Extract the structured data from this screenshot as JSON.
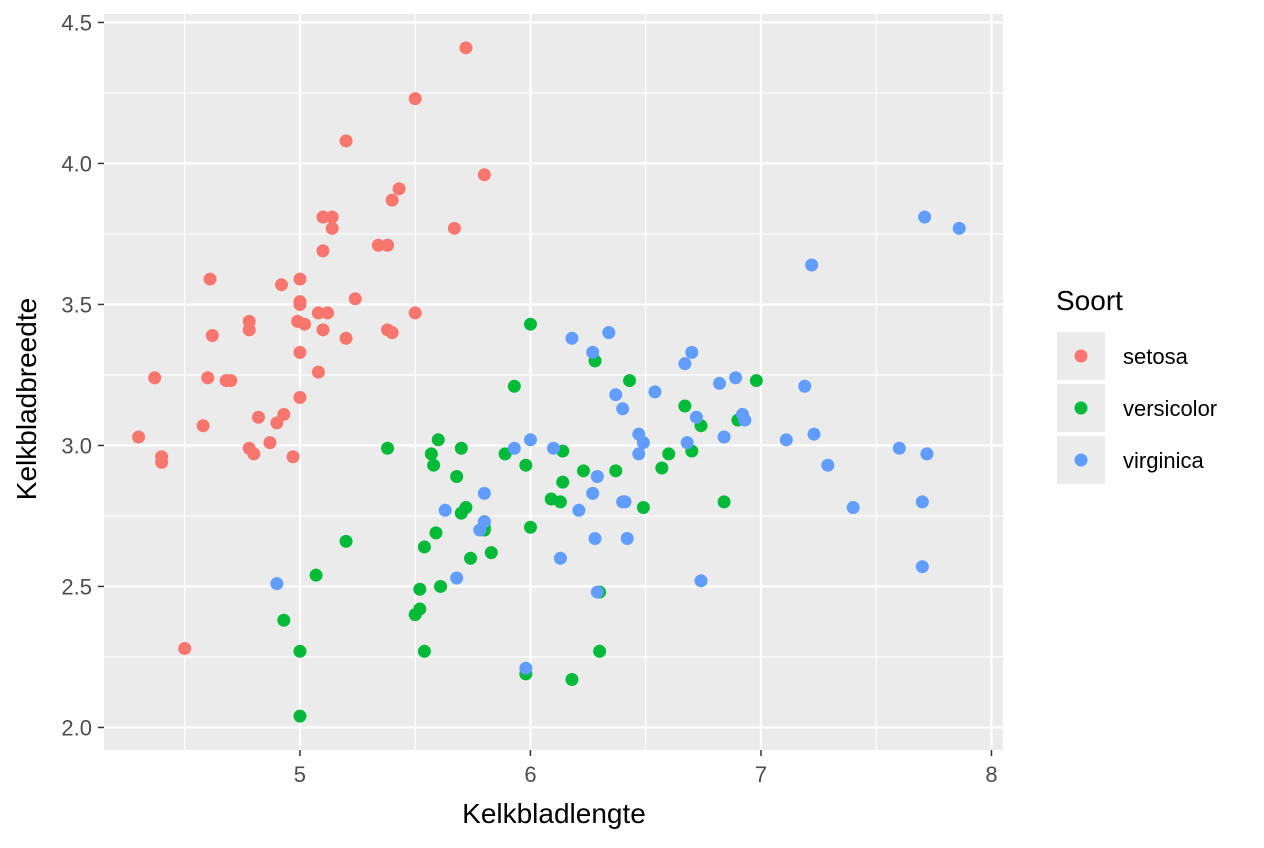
{
  "chart_data": {
    "type": "scatter",
    "xlabel": "Kelkbladlengte",
    "ylabel": "Kelkbladbreedte",
    "xlim": [
      4.15,
      8.05
    ],
    "ylim": [
      1.92,
      4.53
    ],
    "x_ticks": [
      "5",
      "6",
      "7",
      "8"
    ],
    "x_tick_values": [
      5,
      6,
      7,
      8
    ],
    "y_ticks": [
      "2.0",
      "2.5",
      "3.0",
      "3.5",
      "4.0",
      "4.5"
    ],
    "y_tick_values": [
      2.0,
      2.5,
      3.0,
      3.5,
      4.0,
      4.5
    ],
    "grid": true,
    "legend_title": "Soort",
    "legend_position": "right",
    "series": [
      {
        "name": "setosa",
        "color": "#F8766D",
        "points": [
          [
            4.3,
            3.03
          ],
          [
            4.37,
            3.24
          ],
          [
            4.4,
            2.96
          ],
          [
            4.4,
            2.94
          ],
          [
            4.5,
            2.28
          ],
          [
            4.58,
            3.07
          ],
          [
            4.6,
            3.24
          ],
          [
            4.61,
            3.59
          ],
          [
            4.62,
            3.39
          ],
          [
            4.68,
            3.23
          ],
          [
            4.7,
            3.23
          ],
          [
            4.78,
            3.44
          ],
          [
            4.78,
            3.41
          ],
          [
            4.78,
            2.99
          ],
          [
            4.8,
            2.97
          ],
          [
            4.82,
            3.1
          ],
          [
            4.87,
            3.01
          ],
          [
            4.9,
            3.08
          ],
          [
            4.92,
            3.57
          ],
          [
            4.93,
            3.11
          ],
          [
            4.97,
            2.96
          ],
          [
            4.99,
            3.44
          ],
          [
            5.0,
            3.51
          ],
          [
            5.0,
            3.59
          ],
          [
            5.0,
            3.5
          ],
          [
            5.0,
            3.33
          ],
          [
            5.0,
            3.17
          ],
          [
            5.02,
            3.43
          ],
          [
            5.08,
            3.26
          ],
          [
            5.08,
            3.47
          ],
          [
            5.1,
            3.69
          ],
          [
            5.1,
            3.81
          ],
          [
            5.1,
            3.41
          ],
          [
            5.12,
            3.47
          ],
          [
            5.14,
            3.81
          ],
          [
            5.14,
            3.77
          ],
          [
            5.2,
            4.08
          ],
          [
            5.2,
            3.38
          ],
          [
            5.24,
            3.52
          ],
          [
            5.34,
            3.71
          ],
          [
            5.38,
            3.71
          ],
          [
            5.38,
            3.41
          ],
          [
            5.4,
            3.4
          ],
          [
            5.4,
            3.87
          ],
          [
            5.43,
            3.91
          ],
          [
            5.5,
            4.23
          ],
          [
            5.5,
            3.47
          ],
          [
            5.67,
            3.77
          ],
          [
            5.72,
            4.41
          ],
          [
            5.8,
            3.96
          ]
        ]
      },
      {
        "name": "versicolor",
        "color": "#00BA38",
        "points": [
          [
            4.93,
            2.38
          ],
          [
            5.0,
            2.27
          ],
          [
            5.0,
            2.04
          ],
          [
            5.07,
            2.54
          ],
          [
            5.2,
            2.66
          ],
          [
            5.38,
            2.99
          ],
          [
            5.5,
            2.4
          ],
          [
            5.52,
            2.42
          ],
          [
            5.52,
            2.49
          ],
          [
            5.54,
            2.64
          ],
          [
            5.54,
            2.27
          ],
          [
            5.57,
            2.97
          ],
          [
            5.58,
            2.93
          ],
          [
            5.59,
            2.69
          ],
          [
            5.6,
            3.02
          ],
          [
            5.61,
            2.5
          ],
          [
            5.68,
            2.89
          ],
          [
            5.7,
            2.76
          ],
          [
            5.7,
            2.99
          ],
          [
            5.72,
            2.78
          ],
          [
            5.74,
            2.6
          ],
          [
            5.8,
            2.7
          ],
          [
            5.8,
            2.71
          ],
          [
            5.83,
            2.62
          ],
          [
            5.89,
            2.97
          ],
          [
            5.93,
            3.21
          ],
          [
            5.98,
            2.93
          ],
          [
            5.98,
            2.19
          ],
          [
            6.0,
            3.43
          ],
          [
            6.0,
            2.71
          ],
          [
            6.09,
            2.81
          ],
          [
            6.13,
            2.8
          ],
          [
            6.14,
            2.87
          ],
          [
            6.14,
            2.98
          ],
          [
            6.18,
            2.17
          ],
          [
            6.23,
            2.91
          ],
          [
            6.28,
            3.3
          ],
          [
            6.3,
            2.48
          ],
          [
            6.3,
            2.27
          ],
          [
            6.37,
            2.91
          ],
          [
            6.43,
            3.23
          ],
          [
            6.49,
            2.78
          ],
          [
            6.57,
            2.92
          ],
          [
            6.6,
            2.97
          ],
          [
            6.67,
            3.14
          ],
          [
            6.7,
            2.98
          ],
          [
            6.74,
            3.07
          ],
          [
            6.84,
            2.8
          ],
          [
            6.9,
            3.09
          ],
          [
            6.98,
            3.23
          ]
        ]
      },
      {
        "name": "virginica",
        "color": "#619CFF",
        "points": [
          [
            4.9,
            2.51
          ],
          [
            5.63,
            2.77
          ],
          [
            5.68,
            2.53
          ],
          [
            5.78,
            2.7
          ],
          [
            5.8,
            2.73
          ],
          [
            5.8,
            2.83
          ],
          [
            5.93,
            2.99
          ],
          [
            5.98,
            2.21
          ],
          [
            6.0,
            3.02
          ],
          [
            6.1,
            2.99
          ],
          [
            6.13,
            2.6
          ],
          [
            6.18,
            3.38
          ],
          [
            6.21,
            2.77
          ],
          [
            6.27,
            3.33
          ],
          [
            6.27,
            2.83
          ],
          [
            6.28,
            2.67
          ],
          [
            6.29,
            2.89
          ],
          [
            6.29,
            2.48
          ],
          [
            6.34,
            3.4
          ],
          [
            6.37,
            3.18
          ],
          [
            6.4,
            3.13
          ],
          [
            6.4,
            2.8
          ],
          [
            6.41,
            2.8
          ],
          [
            6.42,
            2.67
          ],
          [
            6.47,
            3.04
          ],
          [
            6.47,
            2.97
          ],
          [
            6.49,
            3.01
          ],
          [
            6.54,
            3.19
          ],
          [
            6.67,
            3.29
          ],
          [
            6.68,
            3.01
          ],
          [
            6.7,
            3.33
          ],
          [
            6.72,
            3.1
          ],
          [
            6.74,
            2.52
          ],
          [
            6.82,
            3.22
          ],
          [
            6.84,
            3.03
          ],
          [
            6.89,
            3.24
          ],
          [
            6.92,
            3.11
          ],
          [
            6.93,
            3.09
          ],
          [
            7.11,
            3.02
          ],
          [
            7.19,
            3.21
          ],
          [
            7.22,
            3.64
          ],
          [
            7.23,
            3.04
          ],
          [
            7.29,
            2.93
          ],
          [
            7.4,
            2.78
          ],
          [
            7.6,
            2.99
          ],
          [
            7.7,
            2.8
          ],
          [
            7.7,
            2.57
          ],
          [
            7.71,
            3.81
          ],
          [
            7.72,
            2.97
          ],
          [
            7.86,
            3.77
          ]
        ]
      }
    ]
  }
}
